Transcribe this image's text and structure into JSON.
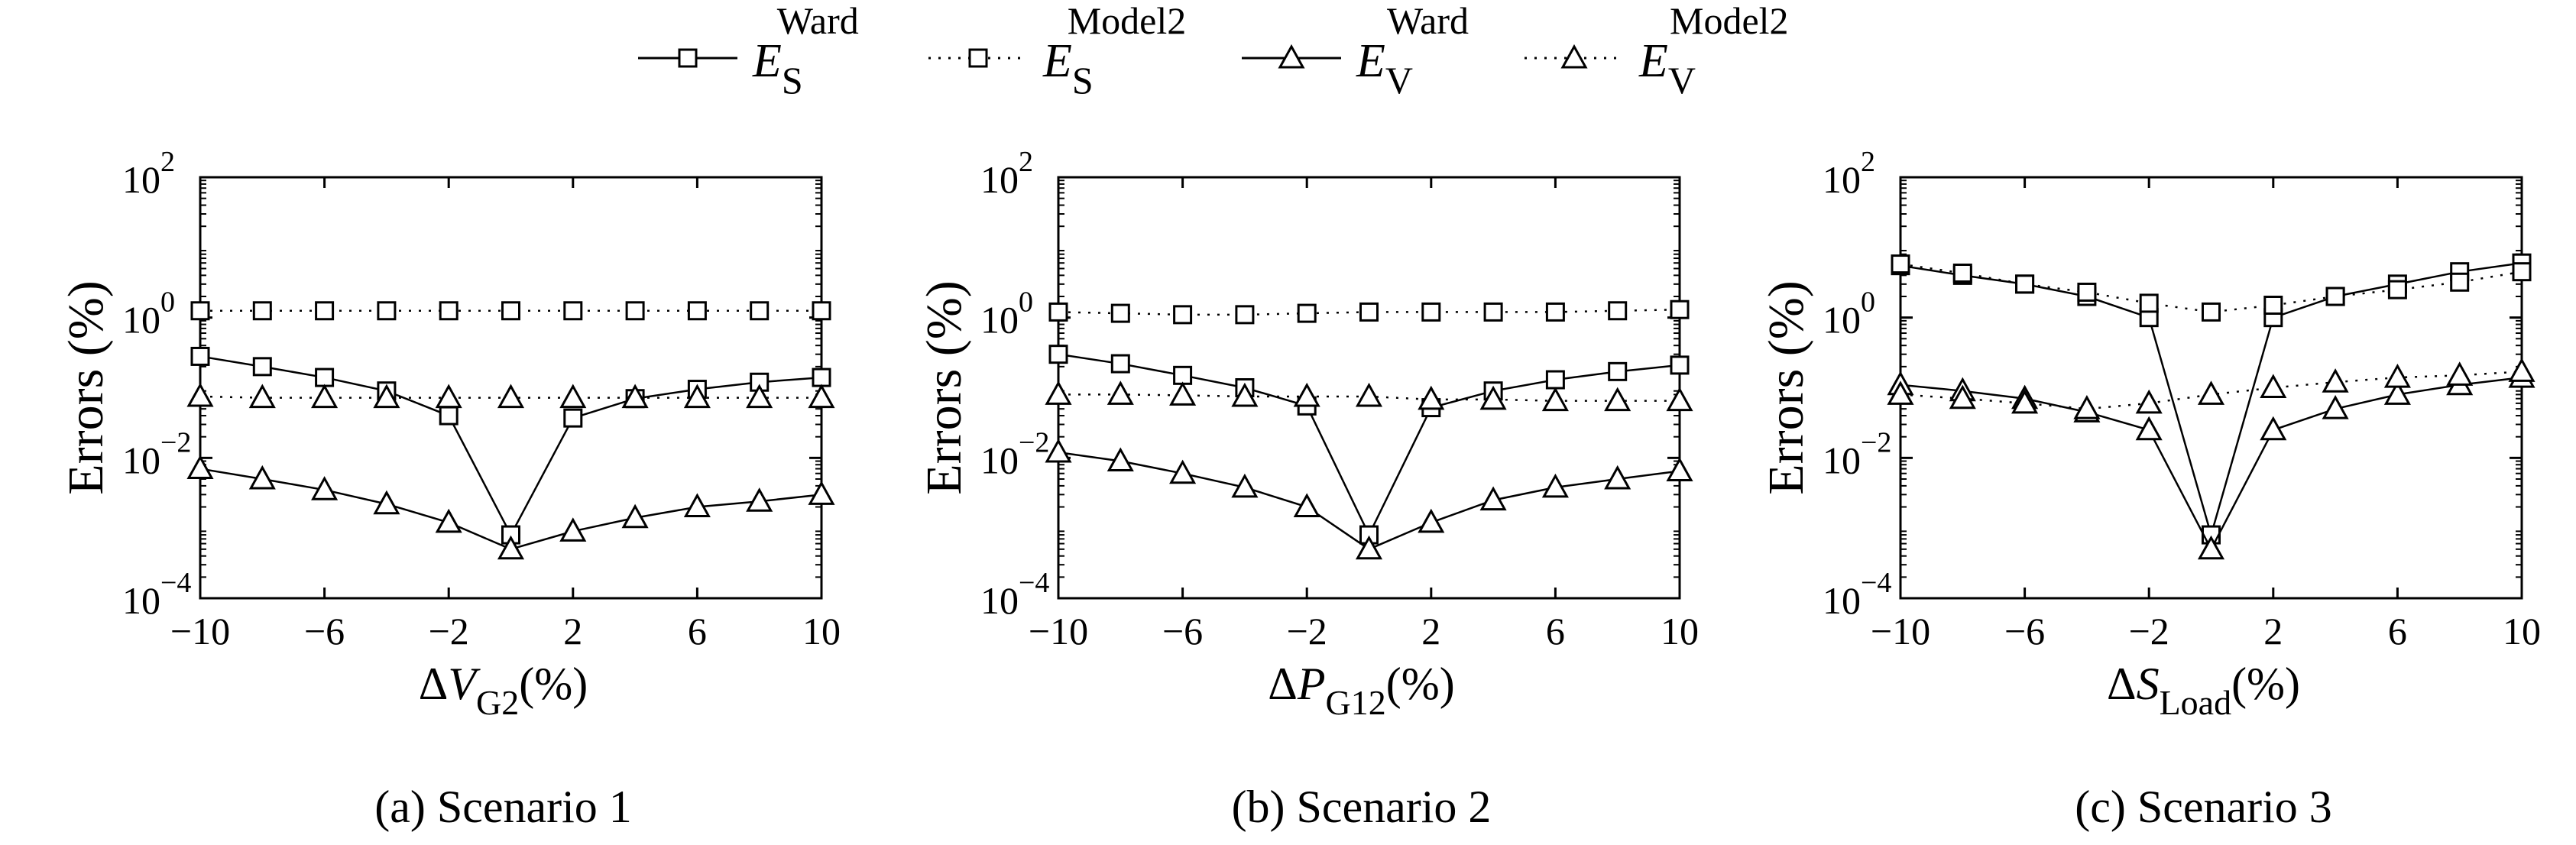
{
  "legend": [
    {
      "base": "E",
      "sub": "S",
      "sup": "Ward",
      "marker": "square",
      "style": "solid"
    },
    {
      "base": "E",
      "sub": "S",
      "sup": "Model2",
      "marker": "square",
      "style": "dotted"
    },
    {
      "base": "E",
      "sub": "V",
      "sup": "Ward",
      "marker": "triangle",
      "style": "solid"
    },
    {
      "base": "E",
      "sub": "V",
      "sup": "Model2",
      "marker": "triangle",
      "style": "dotted"
    }
  ],
  "chart_data": [
    {
      "type": "line",
      "caption": "(a) Scenario 1",
      "xlabel": {
        "prefix": "Δ",
        "var": "V",
        "sub": "G2",
        "suffix": "(%)"
      },
      "ylabel": "Errors (%)",
      "yscale": "log",
      "ylim": [
        0.0001,
        100
      ],
      "xlim": [
        -10,
        10
      ],
      "xticks": [
        "−10",
        "−6",
        "−2",
        "2",
        "6",
        "10"
      ],
      "xtick_values": [
        -10,
        -6,
        -2,
        2,
        6,
        10
      ],
      "yticks": [
        {
          "base": "10",
          "exp": "−4",
          "value": 0.0001
        },
        {
          "base": "10",
          "exp": "−2",
          "value": 0.01
        },
        {
          "base": "10",
          "exp": "0",
          "value": 1
        },
        {
          "base": "10",
          "exp": "2",
          "value": 100
        }
      ],
      "grid": false,
      "x": [
        -10,
        -8,
        -6,
        -4,
        -2,
        0,
        2,
        4,
        6,
        8,
        10
      ],
      "series": [
        {
          "legend_index": 0,
          "values": [
            0.28,
            0.2,
            0.14,
            0.09,
            0.04,
            0.0008,
            0.037,
            0.07,
            0.095,
            0.12,
            0.14
          ]
        },
        {
          "legend_index": 1,
          "values": [
            1.25,
            1.25,
            1.25,
            1.25,
            1.25,
            1.25,
            1.25,
            1.25,
            1.25,
            1.25,
            1.25
          ]
        },
        {
          "legend_index": 2,
          "values": [
            0.007,
            0.005,
            0.0035,
            0.0022,
            0.0012,
            0.0005,
            0.0009,
            0.0014,
            0.002,
            0.0024,
            0.003
          ]
        },
        {
          "legend_index": 3,
          "values": [
            0.075,
            0.072,
            0.072,
            0.072,
            0.072,
            0.072,
            0.072,
            0.072,
            0.072,
            0.072,
            0.072
          ]
        }
      ]
    },
    {
      "type": "line",
      "caption": "(b) Scenario 2",
      "xlabel": {
        "prefix": "Δ",
        "var": "P",
        "sub": "G12",
        "suffix": "(%)"
      },
      "ylabel": "Errors (%)",
      "yscale": "log",
      "ylim": [
        0.0001,
        100
      ],
      "xlim": [
        -10,
        10
      ],
      "xticks": [
        "−10",
        "−6",
        "−2",
        "2",
        "6",
        "10"
      ],
      "xtick_values": [
        -10,
        -6,
        -2,
        2,
        6,
        10
      ],
      "yticks": [
        {
          "base": "10",
          "exp": "−4",
          "value": 0.0001
        },
        {
          "base": "10",
          "exp": "−2",
          "value": 0.01
        },
        {
          "base": "10",
          "exp": "0",
          "value": 1
        },
        {
          "base": "10",
          "exp": "2",
          "value": 100
        }
      ],
      "grid": false,
      "x": [
        -10,
        -8,
        -6,
        -4,
        -2,
        0,
        2,
        4,
        6,
        8,
        10
      ],
      "series": [
        {
          "legend_index": 0,
          "values": [
            0.3,
            0.22,
            0.15,
            0.1,
            0.055,
            0.0008,
            0.052,
            0.09,
            0.13,
            0.17,
            0.21
          ]
        },
        {
          "legend_index": 1,
          "values": [
            1.2,
            1.15,
            1.1,
            1.1,
            1.15,
            1.2,
            1.2,
            1.2,
            1.2,
            1.25,
            1.3
          ]
        },
        {
          "legend_index": 2,
          "values": [
            0.012,
            0.009,
            0.006,
            0.0038,
            0.002,
            0.0005,
            0.0012,
            0.0025,
            0.0038,
            0.005,
            0.0065
          ]
        },
        {
          "legend_index": 3,
          "values": [
            0.08,
            0.08,
            0.078,
            0.075,
            0.075,
            0.075,
            0.068,
            0.068,
            0.065,
            0.065,
            0.065
          ]
        }
      ]
    },
    {
      "type": "line",
      "caption": "(c) Scenario 3",
      "xlabel": {
        "prefix": "Δ",
        "var": "S",
        "sub": "Load",
        "suffix": "(%)"
      },
      "ylabel": "Errors (%)",
      "yscale": "log",
      "ylim": [
        0.0001,
        100
      ],
      "xlim": [
        -10,
        10
      ],
      "xticks": [
        "−10",
        "−6",
        "−2",
        "2",
        "6",
        "10"
      ],
      "xtick_values": [
        -10,
        -6,
        -2,
        2,
        6,
        10
      ],
      "yticks": [
        {
          "base": "10",
          "exp": "−4",
          "value": 0.0001
        },
        {
          "base": "10",
          "exp": "−2",
          "value": 0.01
        },
        {
          "base": "10",
          "exp": "0",
          "value": 1
        },
        {
          "base": "10",
          "exp": "2",
          "value": 100
        }
      ],
      "grid": false,
      "x": [
        -10,
        -8,
        -6,
        -4,
        -2,
        0,
        2,
        4,
        6,
        8,
        10
      ],
      "series": [
        {
          "legend_index": 0,
          "values": [
            5.5,
            4.0,
            3.0,
            2.0,
            1.0,
            0.0008,
            1.0,
            2.0,
            3.0,
            4.5,
            6.0
          ]
        },
        {
          "legend_index": 1,
          "values": [
            5.8,
            4.3,
            3.0,
            2.3,
            1.6,
            1.2,
            1.5,
            2.0,
            2.5,
            3.2,
            4.5
          ]
        },
        {
          "legend_index": 2,
          "values": [
            0.11,
            0.09,
            0.07,
            0.045,
            0.025,
            0.0005,
            0.025,
            0.05,
            0.08,
            0.11,
            0.14
          ]
        },
        {
          "legend_index": 3,
          "values": [
            0.08,
            0.07,
            0.06,
            0.05,
            0.06,
            0.08,
            0.1,
            0.12,
            0.14,
            0.15,
            0.17
          ]
        }
      ]
    }
  ]
}
